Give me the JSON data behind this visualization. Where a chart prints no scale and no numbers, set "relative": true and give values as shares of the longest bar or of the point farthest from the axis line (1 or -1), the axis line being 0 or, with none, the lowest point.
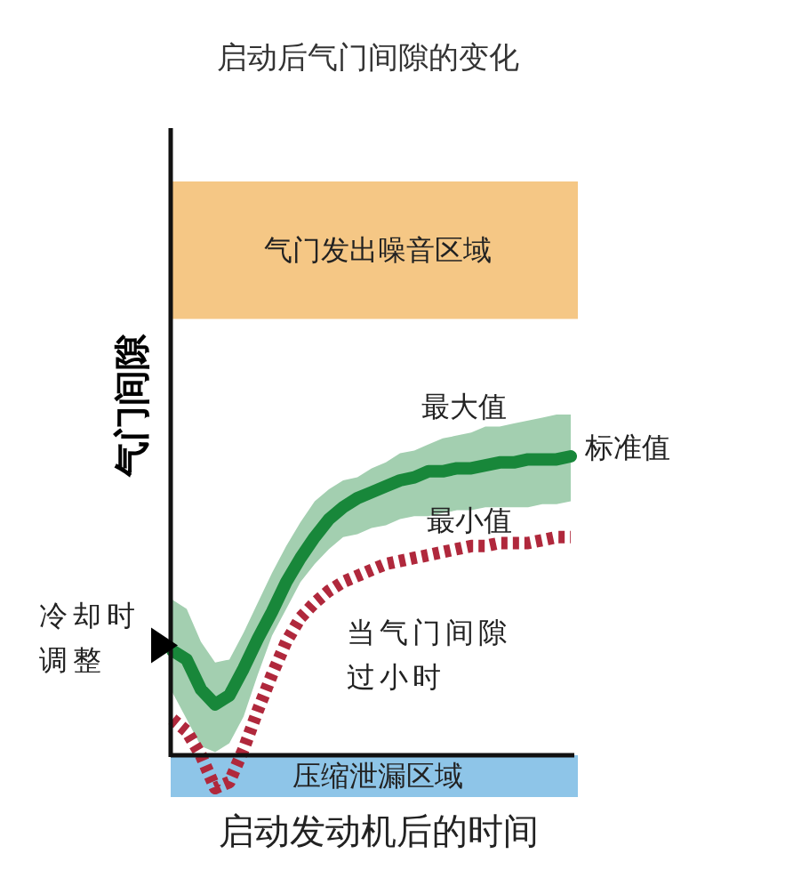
{
  "chart_data": {
    "type": "line",
    "relative": true,
    "title": "启动后气门间隙的变化",
    "xlabel": "启动发动机后的时间",
    "ylabel": "气门间隙",
    "categories": [
      null,
      null,
      null,
      null,
      null,
      null,
      null,
      null,
      null,
      null,
      null,
      null,
      null,
      null,
      null,
      null,
      null,
      null,
      null,
      null,
      null,
      null,
      null,
      null,
      null,
      null,
      null,
      null,
      null
    ],
    "series": [
      {
        "name": "标准值",
        "color": "#18873a",
        "values": [
          0.35,
          0.32,
          0.22,
          0.17,
          0.2,
          0.29,
          0.39,
          0.48,
          0.58,
          0.66,
          0.73,
          0.79,
          0.83,
          0.86,
          0.88,
          0.9,
          0.92,
          0.93,
          0.95,
          0.95,
          0.96,
          0.96,
          0.97,
          0.98,
          0.98,
          0.99,
          0.99,
          0.99,
          1.0
        ],
        "upper": [
          0.52,
          0.49,
          0.38,
          0.31,
          0.32,
          0.41,
          0.51,
          0.61,
          0.7,
          0.78,
          0.85,
          0.89,
          0.92,
          0.93,
          0.96,
          0.98,
          1.01,
          1.02,
          1.04,
          1.06,
          1.07,
          1.08,
          1.1,
          1.1,
          1.11,
          1.12,
          1.13,
          1.14,
          1.14
        ],
        "lower": [
          0.21,
          0.12,
          0.03,
          0.01,
          0.04,
          0.13,
          0.27,
          0.4,
          0.49,
          0.58,
          0.64,
          0.69,
          0.73,
          0.74,
          0.76,
          0.77,
          0.79,
          0.8,
          0.8,
          0.81,
          0.82,
          0.82,
          0.83,
          0.83,
          0.83,
          0.83,
          0.84,
          0.84,
          0.85
        ]
      },
      {
        "name": "当气门间隙过小时",
        "color": "#b0283c",
        "line_style": "dotted",
        "values": [
          0.12,
          0.08,
          0.0,
          -0.11,
          -0.09,
          0.02,
          0.15,
          0.27,
          0.38,
          0.46,
          0.51,
          0.55,
          0.58,
          0.6,
          0.62,
          0.64,
          0.65,
          0.66,
          0.67,
          0.68,
          0.69,
          0.7,
          0.7,
          0.71,
          0.71,
          0.71,
          0.72,
          0.73,
          0.73
        ]
      }
    ],
    "bands": [
      {
        "axis": "y",
        "from": 1.46,
        "to": 1.92,
        "label": "气门发出噪音区域",
        "color": "#f5c785"
      },
      {
        "axis": "y",
        "from": -0.14,
        "to": 0,
        "label": "压缩泄漏区域",
        "color": "#8ec5e8"
      }
    ],
    "annotations": [
      "最大值",
      "最小值",
      "冷却时调整"
    ]
  }
}
